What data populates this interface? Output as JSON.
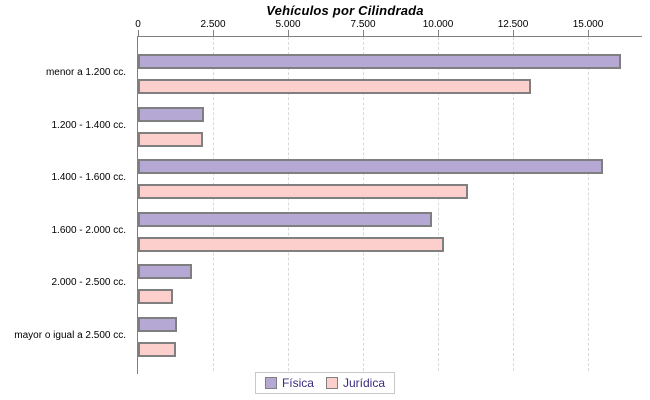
{
  "title": "Vehículos por Cilindrada",
  "chart_data": {
    "type": "bar",
    "orientation": "horizontal",
    "title": "Vehículos por Cilindrada",
    "categories": [
      "menor a 1.200 cc.",
      "1.200 - 1.400 cc.",
      "1.400 - 1.600 cc.",
      "1.600 - 2.000 cc.",
      "2.000 - 2.500 cc.",
      "mayor o igual a 2.500 cc."
    ],
    "series": [
      {
        "name": "Física",
        "color": "#b5a8d5",
        "values": [
          16100,
          2200,
          15500,
          9800,
          1800,
          1300
        ]
      },
      {
        "name": "Jurídica",
        "color": "#fdcfcc",
        "values": [
          13100,
          2150,
          11000,
          10200,
          1150,
          1250
        ]
      }
    ],
    "x_ticks": [
      {
        "value": 0,
        "label": "0"
      },
      {
        "value": 2500,
        "label": "2.500"
      },
      {
        "value": 5000,
        "label": "5.000"
      },
      {
        "value": 7500,
        "label": "7.500"
      },
      {
        "value": 10000,
        "label": "10.000"
      },
      {
        "value": 12500,
        "label": "12.500"
      },
      {
        "value": 15000,
        "label": "15.000"
      }
    ],
    "xlim": [
      0,
      16800
    ],
    "grid": "vertical-dashed",
    "x_axis_position": "top",
    "legend_position": "bottom",
    "legend": [
      "Física",
      "Jurídica"
    ]
  },
  "colors": {
    "fisica_fill": "#b5a8d5",
    "juridica_fill": "#fdcfcc",
    "bar_border": "#7f7f7f",
    "axis_line": "#808080",
    "gridline": "#d9d9d9",
    "legend_text": "#3a2b80",
    "title_text": "#000000"
  }
}
